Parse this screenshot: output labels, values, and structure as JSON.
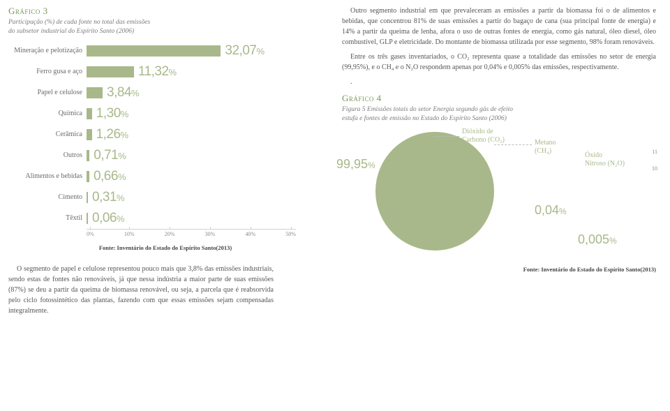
{
  "left": {
    "chart_title": "Gráfico 3",
    "chart_subtitle_l1": "Participação (%) de cada fonte no total das emissões",
    "chart_subtitle_l2": "do subsetor industrial do Espírito Santo (2006)",
    "bars": [
      {
        "label": "Mineração e pelotização",
        "value": 32.07,
        "text": "32,07"
      },
      {
        "label": "Ferro gusa e aço",
        "value": 11.32,
        "text": "11,32"
      },
      {
        "label": "Papel e celulose",
        "value": 3.84,
        "text": "3,84"
      },
      {
        "label": "Química",
        "value": 1.3,
        "text": "1,30"
      },
      {
        "label": "Cerâmica",
        "value": 1.26,
        "text": "1,26"
      },
      {
        "label": "Outros",
        "value": 0.71,
        "text": "0,71"
      },
      {
        "label": "Alimentos e bebidas",
        "value": 0.66,
        "text": "0,66"
      },
      {
        "label": "Cimento",
        "value": 0.31,
        "text": "0,31"
      },
      {
        "label": "Têxtil",
        "value": 0.06,
        "text": "0,06"
      }
    ],
    "axis": [
      "0%",
      "10%",
      "20%",
      "30%",
      "40%",
      "50%"
    ],
    "axis_max": 50,
    "source": "Fonte: Inventário do Estado do Espírito Santo(2013)",
    "footer_para": "O segmento de papel e celulose representou pouco mais que 3,8% das emissões industriais, sendo estas de fontes não renováveis, já que nessa indústria a maior parte de suas emissões (87%) se deu a partir da queima de biomassa renovável, ou seja, a parcela que é reabsorvida pelo ciclo fotossintético das plantas, fazendo com que essas emissões sejam compensadas integralmente."
  },
  "right": {
    "para1": "Outro segmento industrial em que prevaleceram as emissões a partir da biomassa foi o de alimentos e bebidas, que concentrou 81% de suas emissões a partir do bagaço de cana (sua principal fonte de energia) e 14% a partir da queima de lenha, afora o uso de outras fontes de energia, como gás natural, óleo diesel, óleo combustível, GLP e eletricidade. Do montante de biomassa utilizada por esse segmento, 98% foram renováveis.",
    "para2": "Entre os três gases inventariados, o CO₂ representa quase a totalidade das emissões no setor de energia (99,95%), e o CH₄ e o N₂O respondem apenas por 0,04% e 0,005% das emissões, respectivamente.",
    "chart_title": "Gráfico 4",
    "chart_subtitle_l1": "Figura 5 Emissões totais do setor Energia segundo gás de efeito",
    "chart_subtitle_l2": "estufa e fontes de emissão no Estado do Espírito Santo (2006)",
    "pie": {
      "co2_label_l1": "Dióxido de",
      "co2_label_l2": "Carbono (CO₂)",
      "co2_value": "99,95",
      "ch4_label_l1": "Metano",
      "ch4_label_l2": "(CH₄)",
      "ch4_value": "0,04",
      "n2o_label_l1": "Óxido",
      "n2o_label_l2": "Nitroso (N₂O)",
      "n2o_value": "0,005",
      "color": "#a8b88a"
    },
    "source": "Fonte: Inventário do Estado do Espírito Santo(2013)",
    "page_a": "11",
    "page_b": "10"
  }
}
